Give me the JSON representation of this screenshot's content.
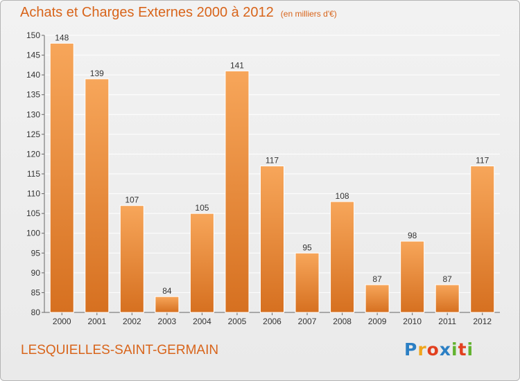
{
  "header": {
    "title": "Achats et Charges Externes 2000 à 2012",
    "unit": "(en milliers d'€)"
  },
  "footer": {
    "commune": "LESQUIELLES-SAINT-GERMAIN",
    "logo_letters": [
      "P",
      "r",
      "o",
      "x",
      "i",
      "t",
      "i"
    ]
  },
  "colors": {
    "bar_light": "#f7a65a",
    "bar_dark": "#d67020",
    "title": "#d8641a",
    "grid": "#ffffff"
  },
  "chart_data": {
    "type": "bar",
    "title": "Achats et Charges Externes 2000 à 2012",
    "subtitle": "(en milliers d'€)",
    "xlabel": "",
    "ylabel": "",
    "categories": [
      "2000",
      "2001",
      "2002",
      "2003",
      "2004",
      "2005",
      "2006",
      "2007",
      "2008",
      "2009",
      "2010",
      "2011",
      "2012"
    ],
    "values": [
      148,
      139,
      107,
      84,
      105,
      141,
      117,
      95,
      108,
      87,
      98,
      87,
      117
    ],
    "ylim": [
      80,
      150
    ],
    "yticks": [
      80,
      85,
      90,
      95,
      100,
      105,
      110,
      115,
      120,
      125,
      130,
      135,
      140,
      145,
      150
    ],
    "grid": true,
    "data_labels": true
  }
}
